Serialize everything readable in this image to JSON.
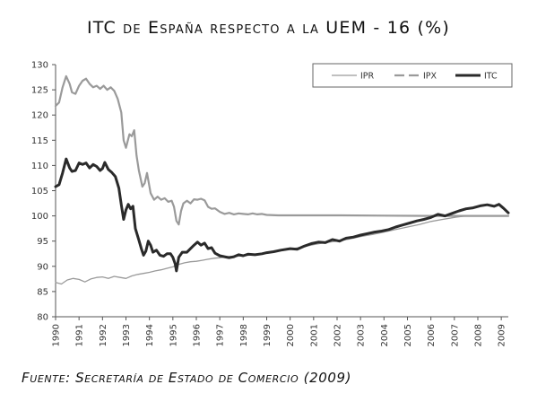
{
  "title": "ITC de España respecto a la UEM - 16 (%)",
  "source": "Fuente: Secretaría de Estado de Comercio (2009)",
  "chart_data": {
    "type": "line",
    "title": "ITC de España respecto a la UEM - 16 (%)",
    "xlabel": "",
    "ylabel": "",
    "xlim": [
      1990,
      2009.3
    ],
    "ylim": [
      80,
      130
    ],
    "yticks": [
      80,
      85,
      90,
      95,
      100,
      105,
      110,
      115,
      120,
      125,
      130
    ],
    "xticks": [
      "1990",
      "1991",
      "1992",
      "1993",
      "1994",
      "1995",
      "1996",
      "1997",
      "1998",
      "1999",
      "2000",
      "2001",
      "2002",
      "2003",
      "2004",
      "2005",
      "2006",
      "2007",
      "2008",
      "2009"
    ],
    "grid": false,
    "legend_position": "top-right",
    "series": [
      {
        "name": "IPR",
        "color": "#9a9a9a",
        "style": "solid-thin",
        "points": [
          [
            1990.0,
            86.8
          ],
          [
            1990.25,
            86.5
          ],
          [
            1990.5,
            87.3
          ],
          [
            1990.75,
            87.6
          ],
          [
            1991.0,
            87.4
          ],
          [
            1991.25,
            86.9
          ],
          [
            1991.5,
            87.5
          ],
          [
            1991.75,
            87.8
          ],
          [
            1992.0,
            87.9
          ],
          [
            1992.25,
            87.6
          ],
          [
            1992.5,
            88.0
          ],
          [
            1992.75,
            87.8
          ],
          [
            1993.0,
            87.6
          ],
          [
            1993.25,
            88.1
          ],
          [
            1993.5,
            88.4
          ],
          [
            1993.75,
            88.6
          ],
          [
            1994.0,
            88.8
          ],
          [
            1994.25,
            89.1
          ],
          [
            1994.5,
            89.3
          ],
          [
            1994.75,
            89.6
          ],
          [
            1995.0,
            89.9
          ],
          [
            1995.25,
            90.4
          ],
          [
            1995.5,
            90.7
          ],
          [
            1995.75,
            90.9
          ],
          [
            1996.0,
            91.0
          ],
          [
            1996.25,
            91.2
          ],
          [
            1996.5,
            91.4
          ],
          [
            1996.75,
            91.6
          ],
          [
            1997.0,
            91.7
          ],
          [
            1997.25,
            91.9
          ],
          [
            1997.5,
            92.0
          ],
          [
            1997.75,
            92.0
          ],
          [
            1998.0,
            92.1
          ],
          [
            1998.5,
            92.3
          ],
          [
            1999.0,
            92.6
          ],
          [
            1999.5,
            93.0
          ],
          [
            2000.0,
            93.4
          ],
          [
            2000.5,
            93.8
          ],
          [
            2001.0,
            94.3
          ],
          [
            2001.5,
            94.7
          ],
          [
            2002.0,
            95.0
          ],
          [
            2002.5,
            95.4
          ],
          [
            2003.0,
            95.9
          ],
          [
            2003.5,
            96.3
          ],
          [
            2004.0,
            96.8
          ],
          [
            2004.5,
            97.3
          ],
          [
            2005.0,
            97.8
          ],
          [
            2005.5,
            98.3
          ],
          [
            2006.0,
            98.9
          ],
          [
            2006.5,
            99.3
          ],
          [
            2007.0,
            99.7
          ],
          [
            2007.5,
            100.0
          ],
          [
            2008.0,
            100.0
          ],
          [
            2008.5,
            100.0
          ],
          [
            2009.0,
            100.0
          ],
          [
            2009.3,
            100.0
          ]
        ]
      },
      {
        "name": "IPX",
        "color": "#9a9a9a",
        "style": "dashed",
        "points": [
          [
            1990.0,
            121.8
          ],
          [
            1990.15,
            122.5
          ],
          [
            1990.3,
            125.5
          ],
          [
            1990.45,
            127.7
          ],
          [
            1990.6,
            126.2
          ],
          [
            1990.7,
            124.5
          ],
          [
            1990.85,
            124.2
          ],
          [
            1991.0,
            125.8
          ],
          [
            1991.15,
            126.8
          ],
          [
            1991.3,
            127.2
          ],
          [
            1991.45,
            126.2
          ],
          [
            1991.6,
            125.5
          ],
          [
            1991.75,
            125.8
          ],
          [
            1991.9,
            125.2
          ],
          [
            1992.05,
            125.8
          ],
          [
            1992.2,
            125.0
          ],
          [
            1992.35,
            125.5
          ],
          [
            1992.5,
            124.8
          ],
          [
            1992.65,
            123.2
          ],
          [
            1992.8,
            120.5
          ],
          [
            1992.9,
            115.0
          ],
          [
            1993.0,
            113.5
          ],
          [
            1993.15,
            116.2
          ],
          [
            1993.25,
            115.8
          ],
          [
            1993.35,
            117.0
          ],
          [
            1993.45,
            112.0
          ],
          [
            1993.55,
            109.0
          ],
          [
            1993.7,
            105.8
          ],
          [
            1993.8,
            106.5
          ],
          [
            1993.9,
            108.5
          ],
          [
            1994.05,
            104.5
          ],
          [
            1994.2,
            103.2
          ],
          [
            1994.35,
            103.8
          ],
          [
            1994.5,
            103.2
          ],
          [
            1994.65,
            103.5
          ],
          [
            1994.8,
            102.8
          ],
          [
            1994.95,
            103.0
          ],
          [
            1995.05,
            101.8
          ],
          [
            1995.15,
            99.0
          ],
          [
            1995.25,
            98.3
          ],
          [
            1995.35,
            101.0
          ],
          [
            1995.45,
            102.5
          ],
          [
            1995.6,
            103.0
          ],
          [
            1995.75,
            102.5
          ],
          [
            1995.9,
            103.3
          ],
          [
            1996.05,
            103.2
          ],
          [
            1996.2,
            103.4
          ],
          [
            1996.35,
            103.1
          ],
          [
            1996.5,
            101.8
          ],
          [
            1996.65,
            101.4
          ],
          [
            1996.8,
            101.5
          ],
          [
            1997.0,
            100.8
          ],
          [
            1997.2,
            100.4
          ],
          [
            1997.4,
            100.6
          ],
          [
            1997.6,
            100.3
          ],
          [
            1997.8,
            100.5
          ],
          [
            1998.0,
            100.4
          ],
          [
            1998.2,
            100.3
          ],
          [
            1998.4,
            100.5
          ],
          [
            1998.6,
            100.3
          ],
          [
            1998.8,
            100.4
          ],
          [
            1999.0,
            100.2
          ],
          [
            1999.5,
            100.1
          ],
          [
            2000.0,
            100.1
          ],
          [
            2002.0,
            100.1
          ],
          [
            2004.0,
            100.05
          ],
          [
            2006.0,
            100.0
          ],
          [
            2008.0,
            100.0
          ],
          [
            2009.3,
            100.0
          ]
        ]
      },
      {
        "name": "ITC",
        "color": "#2a2a2a",
        "style": "solid-thick",
        "points": [
          [
            1990.0,
            105.8
          ],
          [
            1990.15,
            106.2
          ],
          [
            1990.3,
            108.5
          ],
          [
            1990.45,
            111.3
          ],
          [
            1990.6,
            109.5
          ],
          [
            1990.7,
            108.8
          ],
          [
            1990.85,
            109.0
          ],
          [
            1991.0,
            110.5
          ],
          [
            1991.15,
            110.2
          ],
          [
            1991.3,
            110.5
          ],
          [
            1991.45,
            109.5
          ],
          [
            1991.6,
            110.2
          ],
          [
            1991.75,
            109.8
          ],
          [
            1991.9,
            109.0
          ],
          [
            1992.0,
            109.4
          ],
          [
            1992.1,
            110.6
          ],
          [
            1992.25,
            109.2
          ],
          [
            1992.4,
            108.6
          ],
          [
            1992.55,
            107.8
          ],
          [
            1992.7,
            105.5
          ],
          [
            1992.8,
            102.2
          ],
          [
            1992.9,
            99.3
          ],
          [
            1993.0,
            101.2
          ],
          [
            1993.1,
            102.3
          ],
          [
            1993.2,
            101.4
          ],
          [
            1993.3,
            101.9
          ],
          [
            1993.4,
            97.5
          ],
          [
            1993.55,
            95.2
          ],
          [
            1993.65,
            93.6
          ],
          [
            1993.75,
            92.2
          ],
          [
            1993.85,
            93.0
          ],
          [
            1993.95,
            95.0
          ],
          [
            1994.05,
            94.2
          ],
          [
            1994.15,
            92.8
          ],
          [
            1994.3,
            93.2
          ],
          [
            1994.45,
            92.2
          ],
          [
            1994.6,
            92.0
          ],
          [
            1994.75,
            92.5
          ],
          [
            1994.9,
            92.5
          ],
          [
            1995.0,
            91.8
          ],
          [
            1995.1,
            90.5
          ],
          [
            1995.15,
            89.1
          ],
          [
            1995.25,
            91.8
          ],
          [
            1995.4,
            92.8
          ],
          [
            1995.6,
            92.8
          ],
          [
            1995.75,
            93.5
          ],
          [
            1995.9,
            94.2
          ],
          [
            1996.05,
            94.8
          ],
          [
            1996.2,
            94.2
          ],
          [
            1996.35,
            94.6
          ],
          [
            1996.5,
            93.5
          ],
          [
            1996.65,
            93.7
          ],
          [
            1996.8,
            92.6
          ],
          [
            1997.0,
            92.1
          ],
          [
            1997.2,
            91.9
          ],
          [
            1997.4,
            91.7
          ],
          [
            1997.6,
            91.9
          ],
          [
            1997.8,
            92.3
          ],
          [
            1998.0,
            92.1
          ],
          [
            1998.2,
            92.4
          ],
          [
            1998.5,
            92.3
          ],
          [
            1998.8,
            92.5
          ],
          [
            1999.0,
            92.7
          ],
          [
            1999.3,
            92.9
          ],
          [
            1999.6,
            93.2
          ],
          [
            2000.0,
            93.5
          ],
          [
            2000.3,
            93.4
          ],
          [
            2000.6,
            94.0
          ],
          [
            2000.9,
            94.5
          ],
          [
            2001.2,
            94.8
          ],
          [
            2001.5,
            94.7
          ],
          [
            2001.8,
            95.3
          ],
          [
            2002.1,
            95.0
          ],
          [
            2002.4,
            95.6
          ],
          [
            2002.7,
            95.8
          ],
          [
            2003.0,
            96.2
          ],
          [
            2003.3,
            96.5
          ],
          [
            2003.6,
            96.8
          ],
          [
            2003.9,
            97.0
          ],
          [
            2004.2,
            97.3
          ],
          [
            2004.5,
            97.8
          ],
          [
            2004.8,
            98.2
          ],
          [
            2005.1,
            98.6
          ],
          [
            2005.4,
            99.0
          ],
          [
            2005.7,
            99.3
          ],
          [
            2006.0,
            99.7
          ],
          [
            2006.3,
            100.3
          ],
          [
            2006.6,
            100.0
          ],
          [
            2006.9,
            100.5
          ],
          [
            2007.2,
            101.0
          ],
          [
            2007.5,
            101.4
          ],
          [
            2007.8,
            101.6
          ],
          [
            2008.1,
            102.0
          ],
          [
            2008.4,
            102.2
          ],
          [
            2008.7,
            101.9
          ],
          [
            2008.9,
            102.3
          ],
          [
            2009.1,
            101.5
          ],
          [
            2009.3,
            100.6
          ]
        ]
      }
    ]
  }
}
